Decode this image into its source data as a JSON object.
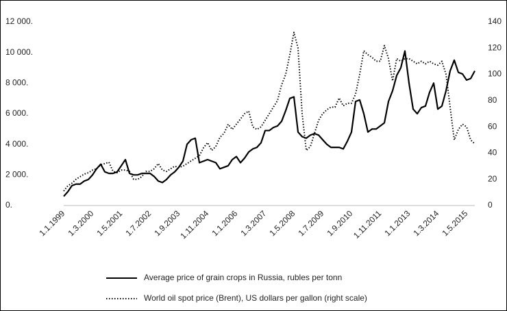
{
  "chart_data": {
    "type": "line",
    "categories": [
      "1.1.1999",
      null,
      null,
      null,
      null,
      null,
      null,
      "1.3.2000",
      null,
      null,
      null,
      null,
      null,
      null,
      "1.5.2001",
      null,
      null,
      null,
      null,
      null,
      null,
      "1.7.2002",
      null,
      null,
      null,
      null,
      null,
      null,
      "1.9.2003",
      null,
      null,
      null,
      null,
      null,
      null,
      "1.11.2004",
      null,
      null,
      null,
      null,
      null,
      null,
      "1.1.2006",
      null,
      null,
      null,
      null,
      null,
      null,
      "1.3.2007",
      null,
      null,
      null,
      null,
      null,
      null,
      "1.5.2008",
      null,
      null,
      null,
      null,
      null,
      null,
      "1.7.2009",
      null,
      null,
      null,
      null,
      null,
      null,
      "1.9.2010",
      null,
      null,
      null,
      null,
      null,
      null,
      "1.11.2011",
      null,
      null,
      null,
      null,
      null,
      null,
      "1.1.2013",
      null,
      null,
      null,
      null,
      null,
      null,
      "1.3.2014",
      null,
      null,
      null,
      null,
      null,
      null,
      "1.5.2015",
      null,
      null
    ],
    "series": [
      {
        "name": "Average price of grain crops in Russia, rubles per tonn",
        "color": "#000000",
        "dash": "solid",
        "values": [
          600,
          900,
          1300,
          1400,
          1400,
          1600,
          1700,
          2000,
          2400,
          2700,
          2200,
          2100,
          2100,
          2200,
          2600,
          3000,
          2100,
          2000,
          2000,
          2100,
          2100,
          2100,
          1900,
          1600,
          1500,
          1700,
          2000,
          2200,
          2500,
          2900,
          4000,
          4300,
          4400,
          2800,
          2900,
          3000,
          2900,
          2800,
          2400,
          2500,
          2600,
          3000,
          3200,
          2800,
          3100,
          3500,
          3700,
          3800,
          4100,
          4900,
          4900,
          5100,
          5200,
          5500,
          6200,
          7000,
          7100,
          4800,
          4500,
          4400,
          4600,
          4700,
          4600,
          4300,
          4000,
          3800,
          3800,
          3800,
          3700,
          4200,
          4800,
          6800,
          6900,
          6000,
          4800,
          5000,
          5000,
          5200,
          5400,
          6800,
          7500,
          8500,
          9000,
          10100,
          8000,
          6300,
          6000,
          6400,
          6500,
          7400,
          8000,
          6300,
          6500,
          7500,
          8800,
          9500,
          8700,
          8600,
          8200,
          8300,
          8800
        ]
      },
      {
        "name": "World oil spot price (Brent), US dollars per gallon (right scale)",
        "color": "#000000",
        "dash": "dotted",
        "axis": "y2",
        "values": [
          11,
          15,
          17,
          20,
          22,
          24,
          25,
          27,
          28,
          31,
          32,
          33,
          26,
          25,
          27,
          27,
          26,
          20,
          20,
          22,
          26,
          26,
          28,
          32,
          27,
          26,
          28,
          30,
          29,
          30,
          32,
          34,
          36,
          38,
          44,
          48,
          42,
          45,
          52,
          55,
          62,
          58,
          62,
          66,
          70,
          72,
          60,
          58,
          60,
          65,
          70,
          75,
          80,
          92,
          100,
          115,
          132,
          120,
          70,
          42,
          45,
          55,
          65,
          70,
          73,
          75,
          75,
          82,
          76,
          78,
          78,
          85,
          100,
          118,
          115,
          113,
          110,
          110,
          122,
          112,
          95,
          112,
          110,
          112,
          112,
          110,
          108,
          110,
          108,
          110,
          108,
          107,
          110,
          100,
          75,
          50,
          58,
          62,
          60,
          50,
          47
        ]
      }
    ],
    "ylim": [
      0,
      12000
    ],
    "yticks": [
      {
        "value": 0,
        "label": "0."
      },
      {
        "value": 2000,
        "label": "2 000."
      },
      {
        "value": 4000,
        "label": "4 000."
      },
      {
        "value": 6000,
        "label": "6 000."
      },
      {
        "value": 8000,
        "label": "8 000."
      },
      {
        "value": 10000,
        "label": "10 000."
      },
      {
        "value": 12000,
        "label": "12 000."
      }
    ],
    "y2lim": [
      0,
      140
    ],
    "y2ticks": [
      0,
      20,
      40,
      60,
      80,
      100,
      120,
      140
    ],
    "grid": false,
    "legend": "bottom"
  }
}
